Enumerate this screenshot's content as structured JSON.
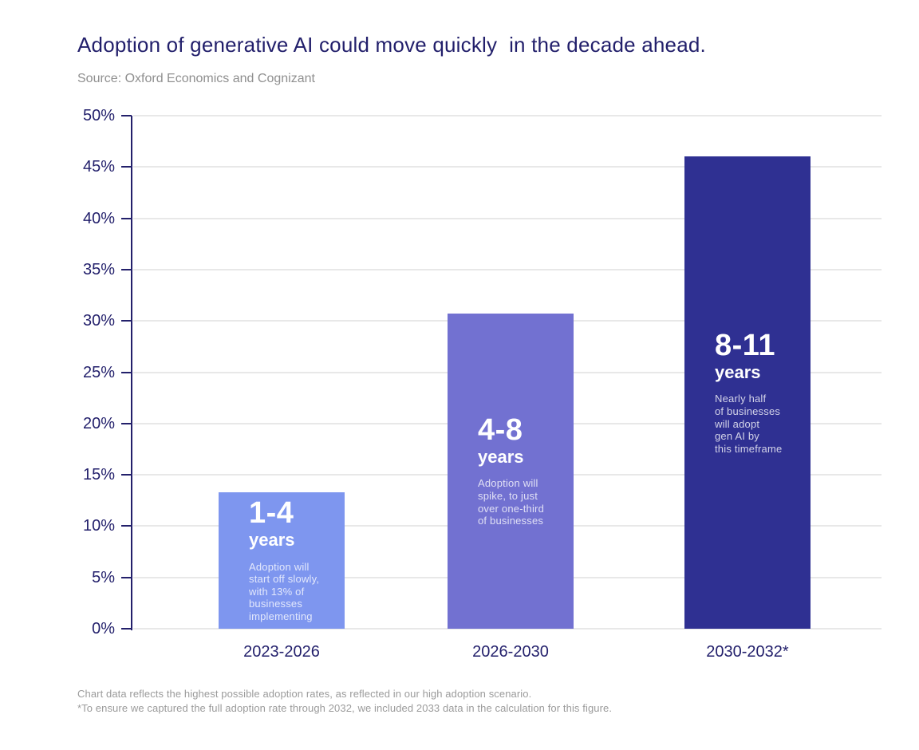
{
  "header": {
    "title": "Adoption of generative AI could move quickly  in the decade ahead.",
    "source": "Source: Oxford Economics and Cognizant"
  },
  "chart_data": {
    "type": "bar",
    "title": "Adoption of generative AI could move quickly in the decade ahead.",
    "source": "Oxford Economics and Cognizant",
    "categories": [
      "2023-2026",
      "2026-2030",
      "2030-2032*"
    ],
    "values": [
      13.3,
      30.7,
      46
    ],
    "xlabel": "",
    "ylabel": "",
    "ylim": [
      0,
      50
    ],
    "ytick_step": 5,
    "ytick_suffix": "%",
    "grid": true,
    "legend": false,
    "bar_colors": [
      "#7E96EF",
      "#7271D1",
      "#2F3092"
    ],
    "bar_annotations": [
      {
        "range": "1-4",
        "unit": "years",
        "description": "Adoption will\nstart off slowly,\nwith 13% of\nbusinesses\nimplementing"
      },
      {
        "range": "4-8",
        "unit": "years",
        "description": "Adoption will\nspike, to just\nover one-third\nof businesses"
      },
      {
        "range": "8-11",
        "unit": "years",
        "description": "Nearly half\nof businesses\nwill adopt\ngen AI by\nthis timeframe"
      }
    ]
  },
  "footnotes": {
    "line1": "Chart data reflects the highest possible adoption rates, as reflected in our high adoption scenario.",
    "line2": "*To ensure we captured the full adoption rate through 2032, we included 2033 data in the calculation for this figure."
  },
  "colors": {
    "title": "#221F6B",
    "axis": "#23206B",
    "gridline": "#E8E8E8",
    "source_text": "#8F8F8F",
    "footnote_text": "#9B9B9B",
    "bar_text": "#FFFFFF"
  }
}
